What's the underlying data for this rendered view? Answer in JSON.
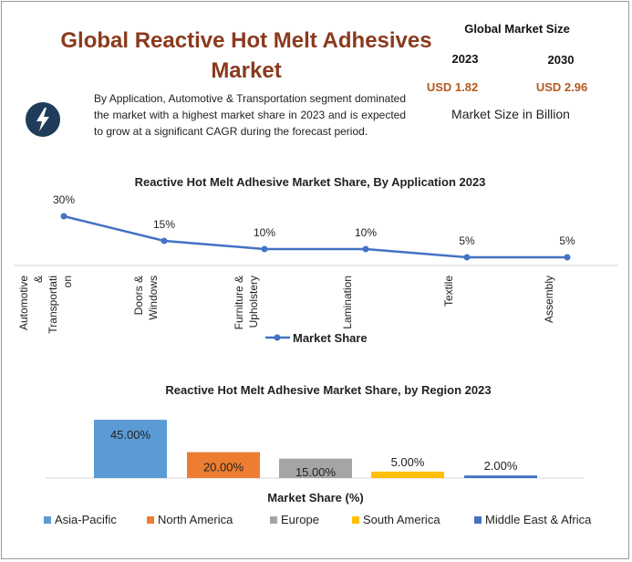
{
  "header": {
    "title": "Global Reactive Hot Melt Adhesives Market",
    "description": "By Application, Automotive & Transportation segment dominated the market with a highest market share in 2023 and is expected to grow at a significant CAGR during the forecast period.",
    "icon": "lightning-bolt-icon"
  },
  "kpi": {
    "heading": "Global Market Size",
    "year_a": "2023",
    "year_b": "2030",
    "value_a": "USD 1.82",
    "value_b": "USD 2.96",
    "note": "Market Size in Billion"
  },
  "colors": {
    "title": "#8b3a1e",
    "value": "#b35a1f",
    "line": "#4472c4",
    "bolt_badge": "#1f3d5a"
  },
  "chart_data": [
    {
      "type": "line",
      "title": "Reactive Hot Melt Adhesive Market Share, By Application 2023",
      "categories": [
        "Automotive & Transportation",
        "Doors & Windows",
        "Furniture & Upholstery",
        "Lamination",
        "Textile",
        "Assembly"
      ],
      "category_lines": [
        [
          "Automotive",
          "&",
          "Transportati",
          "on"
        ],
        [
          "Doors &",
          "Windows"
        ],
        [
          "Furniture &",
          "Upholstery"
        ],
        [
          "Lamination"
        ],
        [
          "Textile"
        ],
        [
          "Assembly"
        ]
      ],
      "series": [
        {
          "name": "Market Share",
          "values": [
            30,
            15,
            10,
            10,
            5,
            5
          ],
          "color": "#4472c4"
        }
      ],
      "data_labels": [
        "30%",
        "15%",
        "10%",
        "10%",
        "5%",
        "5%"
      ],
      "legend": "bottom",
      "grid": false
    },
    {
      "type": "bar",
      "title": "Reactive Hot Melt Adhesive Market Share,  by Region 2023",
      "xlabel": "Market Share (%)",
      "categories": [
        "Asia-Pacific",
        "North America",
        "Europe",
        "South America",
        "Middle East & Africa"
      ],
      "values": [
        45,
        20,
        15,
        5,
        2
      ],
      "data_labels": [
        "45.00%",
        "20.00%",
        "15.00%",
        "5.00%",
        "2.00%"
      ],
      "colors": [
        "#5b9bd5",
        "#ed7d31",
        "#a5a5a5",
        "#ffc000",
        "#4472c4"
      ],
      "legend": "bottom",
      "grid": false
    }
  ]
}
